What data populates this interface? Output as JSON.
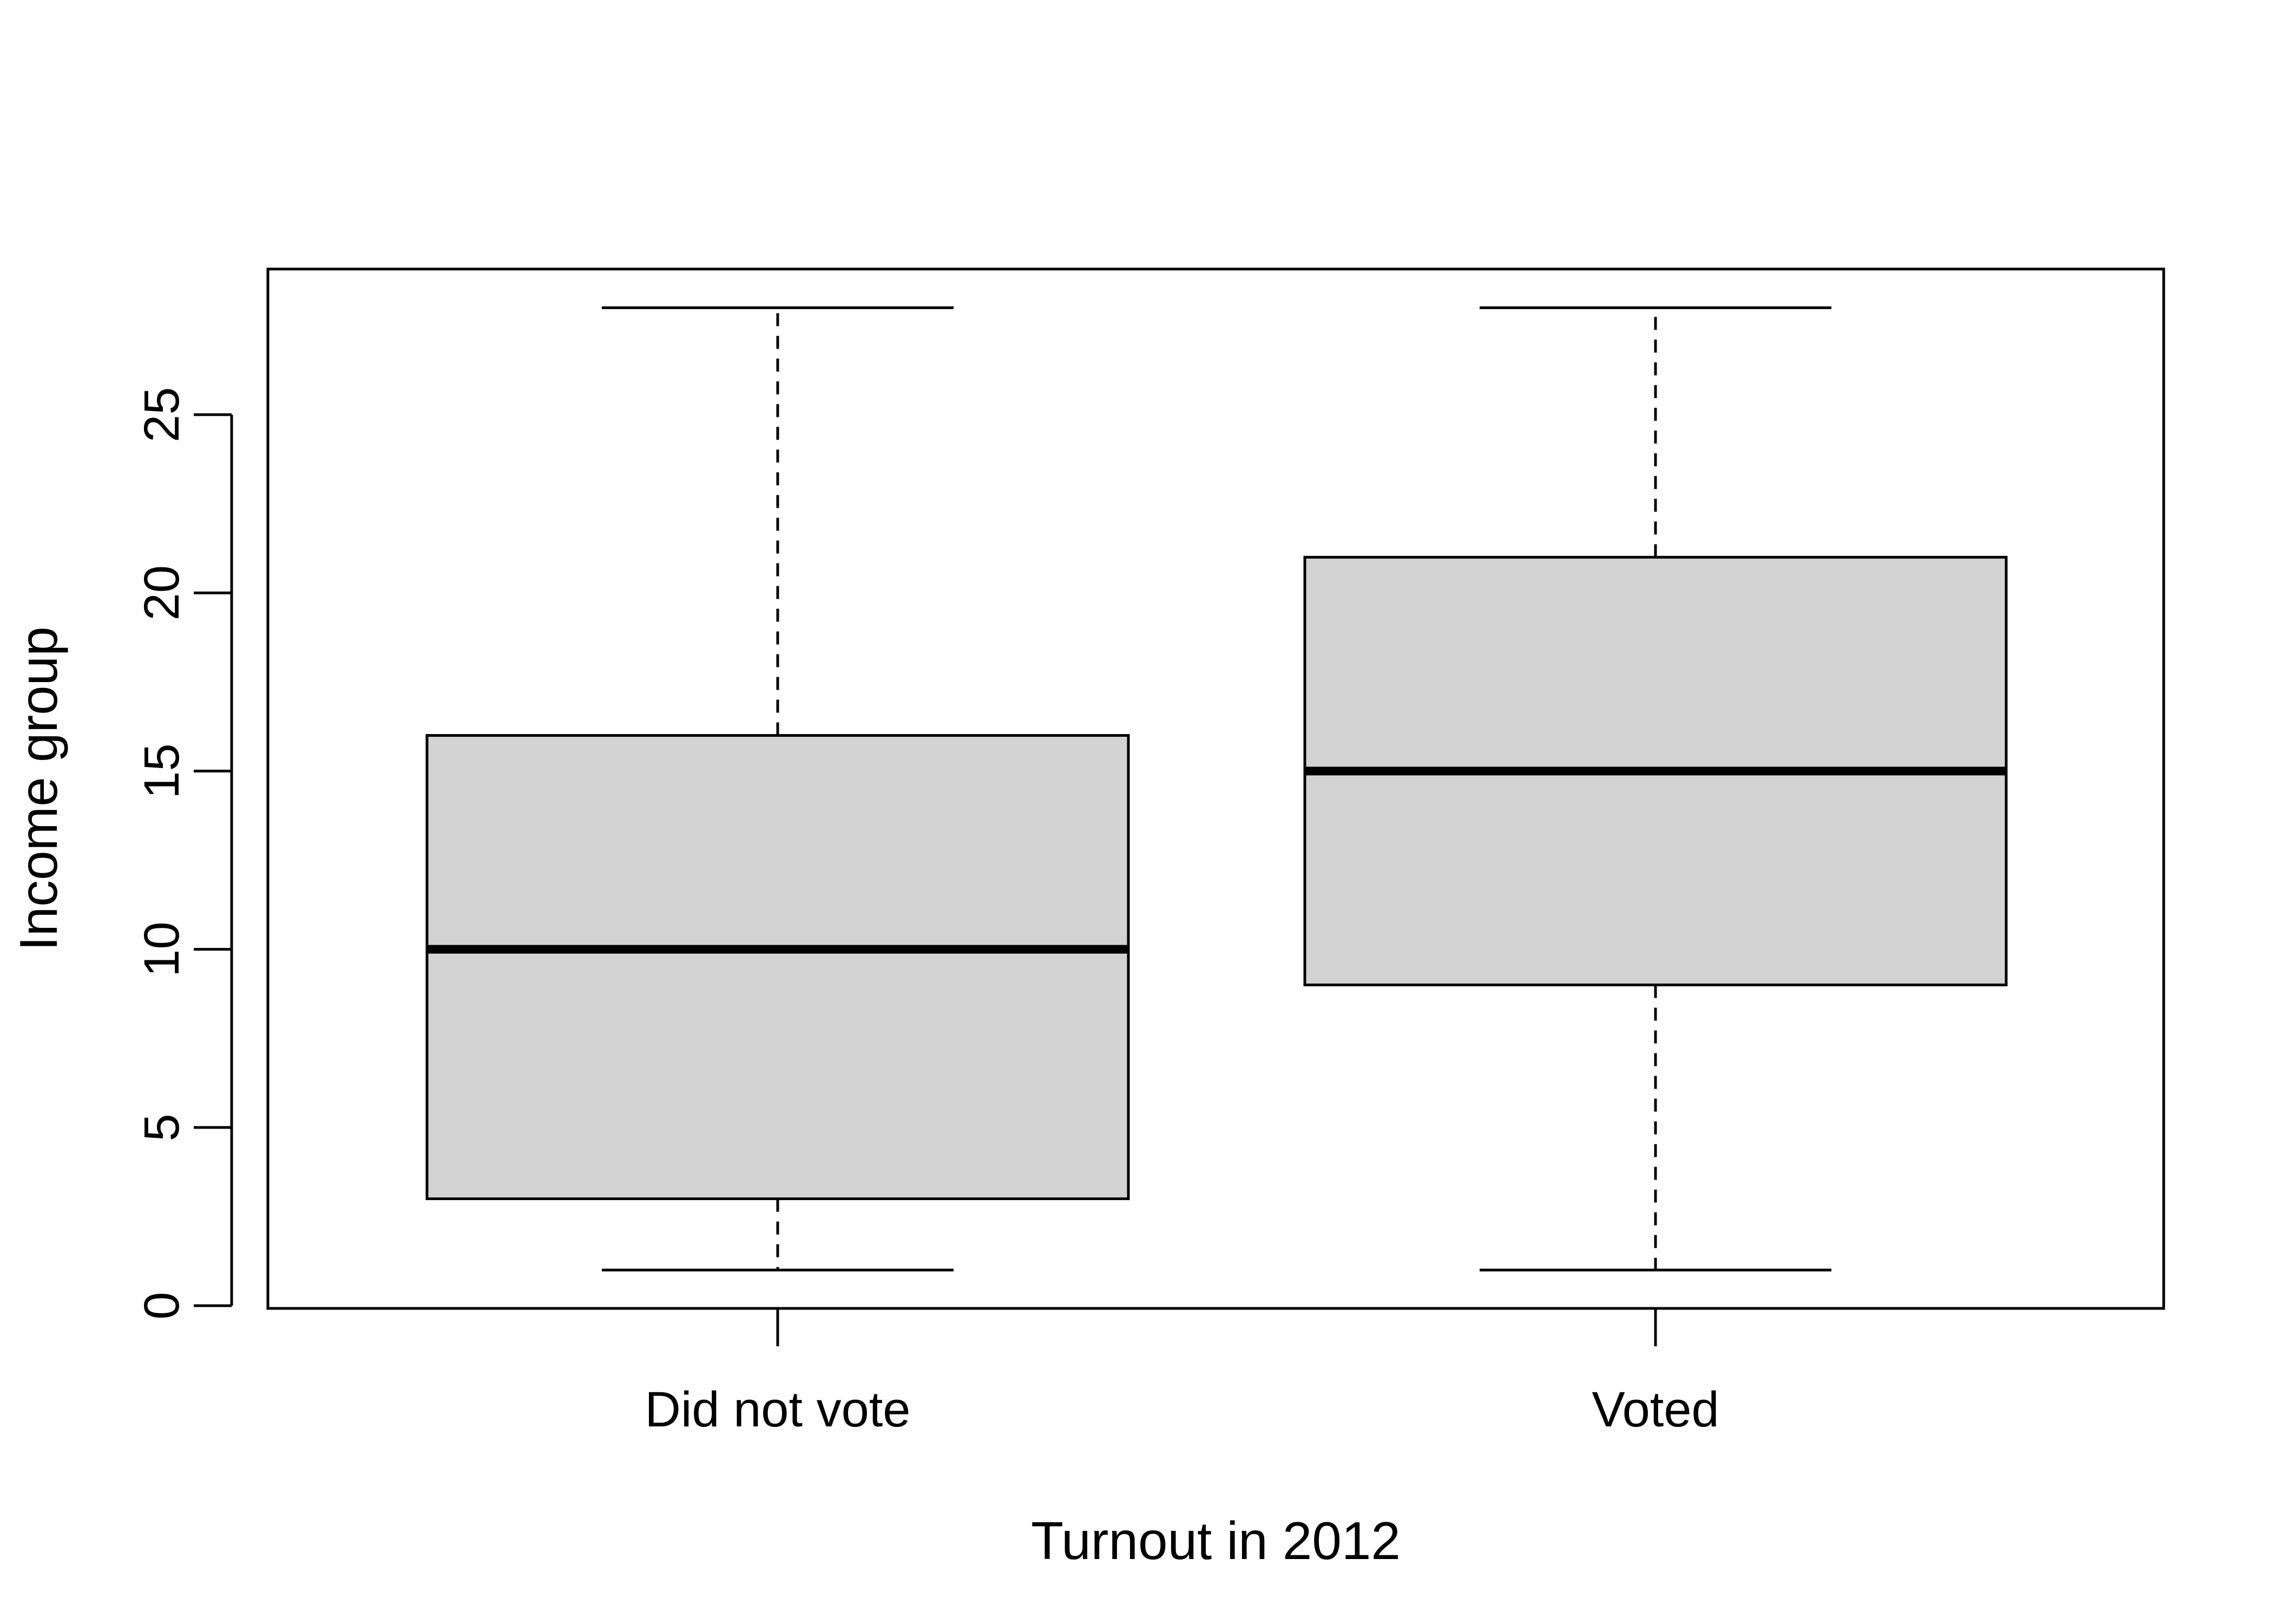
{
  "chart_data": {
    "type": "boxplot",
    "title": "",
    "xlabel": "Turnout in 2012",
    "ylabel": "Income group",
    "ylim": [
      0,
      28
    ],
    "yticks": [
      0,
      5,
      10,
      15,
      20,
      25
    ],
    "grid": false,
    "legend": "none",
    "colors": {
      "box_fill": "#d3d3d3",
      "line": "#000000",
      "background": "#ffffff"
    },
    "categories": [
      "Did not vote",
      "Voted"
    ],
    "series": [
      {
        "values": [
          {
            "category": "Did not vote",
            "whisker_low": 1,
            "q1": 3,
            "median": 10,
            "q3": 16,
            "whisker_high": 28
          },
          {
            "category": "Voted",
            "whisker_low": 1,
            "q1": 9,
            "median": 15,
            "q3": 21,
            "whisker_high": 28
          }
        ]
      }
    ]
  }
}
